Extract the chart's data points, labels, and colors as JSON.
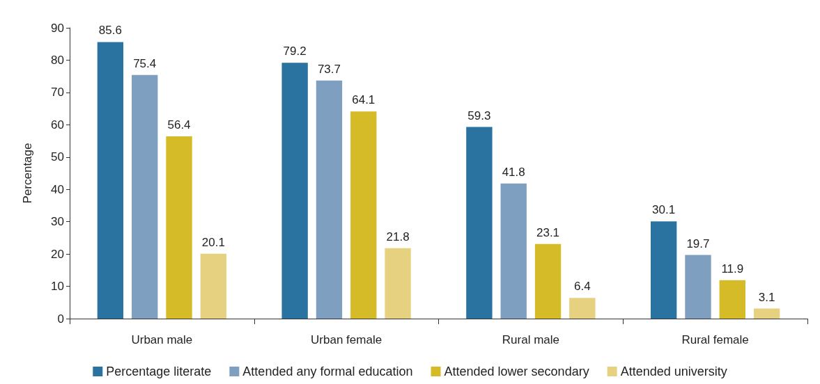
{
  "chart_data": {
    "type": "bar",
    "ylabel": "Percentage",
    "categories": [
      "Urban male",
      "Urban female",
      "Rural male",
      "Rural female"
    ],
    "series": [
      {
        "name": "Percentage literate",
        "color": "#2a72a0",
        "values": [
          85.6,
          79.2,
          59.3,
          30.1
        ]
      },
      {
        "name": "Attended any formal education",
        "color": "#7f9fc1",
        "values": [
          75.4,
          73.7,
          41.8,
          19.7
        ]
      },
      {
        "name": "Attended lower secondary",
        "color": "#d4bb27",
        "values": [
          56.4,
          64.1,
          23.1,
          11.9
        ]
      },
      {
        "name": "Attended university",
        "color": "#e5d17f",
        "values": [
          20.1,
          21.8,
          6.4,
          3.1
        ]
      }
    ],
    "ylim": [
      0,
      90
    ],
    "yticks": [
      0,
      10,
      20,
      30,
      40,
      50,
      60,
      70,
      80,
      90
    ],
    "grid": false,
    "legend": "bottom",
    "data_labels": true
  }
}
